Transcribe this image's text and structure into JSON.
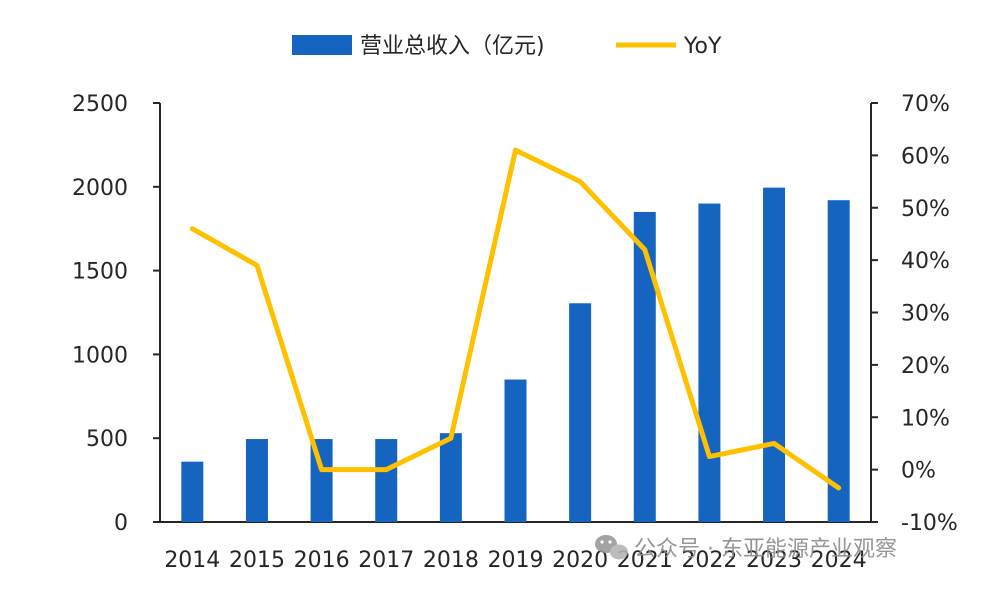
{
  "chart_data": {
    "type": "bar",
    "categories": [
      "2014",
      "2015",
      "2016",
      "2017",
      "2018",
      "2019",
      "2020",
      "2021",
      "2022",
      "2023",
      "2024"
    ],
    "series": [
      {
        "name": "营业总收入（亿元)",
        "kind": "bar",
        "axis": "left",
        "color": "#1565c0",
        "values": [
          360,
          495,
          495,
          495,
          530,
          850,
          1305,
          1850,
          1900,
          1995,
          1920
        ]
      },
      {
        "name": "YoY",
        "kind": "line",
        "axis": "right",
        "color": "#ffc000",
        "values": [
          46,
          39,
          0,
          0,
          6,
          61,
          55,
          42,
          2.5,
          5,
          -3.5
        ]
      }
    ],
    "ylim_left": [
      0,
      2500
    ],
    "yticks_left": [
      "0",
      "500",
      "1000",
      "1500",
      "2000",
      "2500"
    ],
    "ylim_right": [
      -10,
      70
    ],
    "yticks_right": [
      "-10%",
      "0%",
      "10%",
      "20%",
      "30%",
      "40%",
      "50%",
      "60%",
      "70%"
    ],
    "grid": false,
    "legend_position": "top-center"
  },
  "watermark": {
    "text": "公众号 · 东亚能源产业观察",
    "icon": "wechat-icon"
  }
}
